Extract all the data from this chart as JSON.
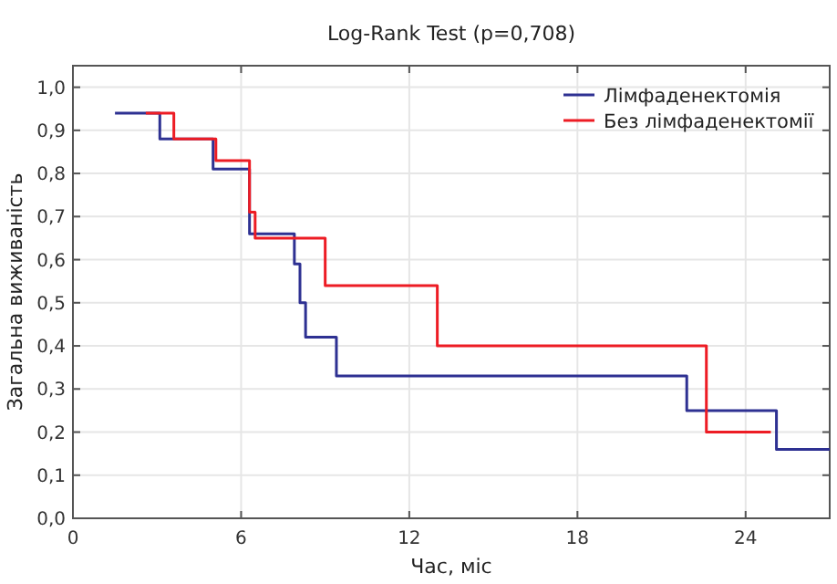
{
  "chart_data": {
    "type": "step",
    "title": "Log-Rank Test (p=0,708)",
    "xlabel": "Час, міс",
    "ylabel": "Загальна виживаність",
    "xlim": [
      0,
      27
    ],
    "xticks": [
      0,
      6,
      12,
      18,
      24
    ],
    "ylim": [
      0,
      1.05
    ],
    "yticks": [
      {
        "value": 0,
        "label": "0,0"
      },
      {
        "value": 0.1,
        "label": "0,1"
      },
      {
        "value": 0.2,
        "label": "0,2"
      },
      {
        "value": 0.3,
        "label": "0,3"
      },
      {
        "value": 0.4,
        "label": "0,4"
      },
      {
        "value": 0.5,
        "label": "0,5"
      },
      {
        "value": 0.6,
        "label": "0,6"
      },
      {
        "value": 0.7,
        "label": "0,7"
      },
      {
        "value": 0.8,
        "label": "0,8"
      },
      {
        "value": 0.9,
        "label": "0,9"
      },
      {
        "value": 1,
        "label": "1,0"
      }
    ],
    "grid": true,
    "legend": "top right",
    "series": [
      {
        "name": "Лімфаденектомія",
        "color": "#2e3192",
        "x": [
          1.5,
          3.1,
          5.0,
          6.3,
          7.9,
          8.1,
          8.3,
          9.4,
          21.9,
          25.1,
          27
        ],
        "values": [
          0.94,
          0.88,
          0.81,
          0.66,
          0.59,
          0.5,
          0.42,
          0.33,
          0.25,
          0.16,
          0.16
        ]
      },
      {
        "name": "Без лімфаденектомії",
        "color": "#ed1c24",
        "x": [
          2.6,
          3.6,
          5.1,
          6.3,
          6.5,
          9.0,
          13.0,
          22.6,
          24.9
        ],
        "values": [
          0.94,
          0.88,
          0.83,
          0.71,
          0.65,
          0.54,
          0.4,
          0.2,
          0.2
        ]
      }
    ]
  }
}
